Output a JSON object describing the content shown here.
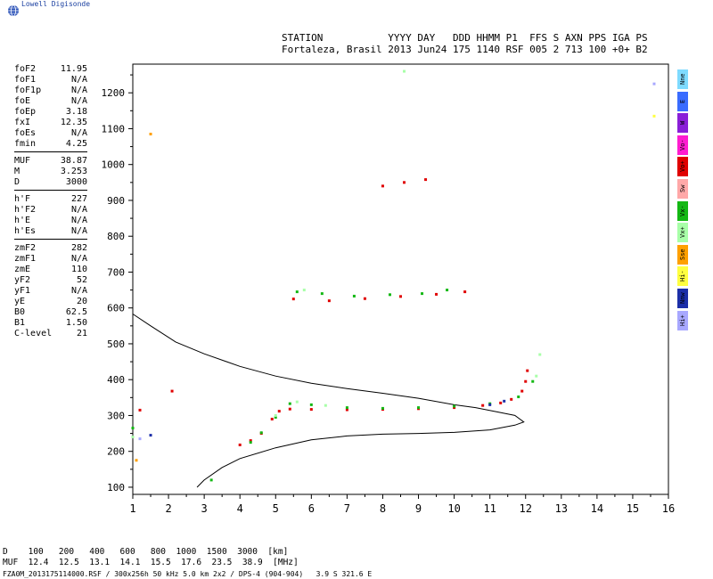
{
  "brand": {
    "logo_icon": "globe-icon",
    "name": "Lowell Digisonde"
  },
  "header": {
    "line1": "STATION           YYYY DAY   DDD HHMM P1  FFS S AXN PPS IGA PS",
    "line2": "Fortaleza, Brasil 2013 Jun24 175 1140 RSF 005 2 713 100 +0+ B2"
  },
  "parameters": [
    [
      [
        "foF2",
        "11.95"
      ],
      [
        "foF1",
        "N/A"
      ],
      [
        "foF1p",
        "N/A"
      ],
      [
        "foE",
        "N/A"
      ],
      [
        "foEp",
        "3.18"
      ],
      [
        "fxI",
        "12.35"
      ],
      [
        "foEs",
        "N/A"
      ],
      [
        "fmin",
        "4.25"
      ]
    ],
    [
      [
        "MUF",
        "38.87"
      ],
      [
        "M",
        "3.253"
      ],
      [
        "D",
        "3000"
      ]
    ],
    [
      [
        "h'F",
        "227"
      ],
      [
        "h'F2",
        "N/A"
      ],
      [
        "h'E",
        "N/A"
      ],
      [
        "h'Es",
        "N/A"
      ]
    ],
    [
      [
        "zmF2",
        "282"
      ],
      [
        "zmF1",
        "N/A"
      ],
      [
        "zmE",
        "110"
      ],
      [
        "yF2",
        "52"
      ],
      [
        "yF1",
        "N/A"
      ],
      [
        "yE",
        "20"
      ],
      [
        "B0",
        "62.5"
      ],
      [
        "B1",
        "1.50"
      ],
      [
        "C-level",
        "21"
      ]
    ]
  ],
  "legend": [
    {
      "label": "Nne",
      "color": "#7fdbff"
    },
    {
      "label": "E",
      "color": "#3a6cff"
    },
    {
      "label": "W",
      "color": "#8a1fd8"
    },
    {
      "label": "Vo-",
      "color": "#ff1cd0"
    },
    {
      "label": "Vo+",
      "color": "#e00000"
    },
    {
      "label": "Sw",
      "color": "#ffa8a8"
    },
    {
      "label": "Vx-",
      "color": "#14b814"
    },
    {
      "label": "Vx+",
      "color": "#a8ffa8"
    },
    {
      "label": "Sse",
      "color": "#ffa000"
    },
    {
      "label": "Hi-",
      "color": "#ffff40"
    },
    {
      "label": "Nnw",
      "color": "#1c2fa8"
    },
    {
      "label": "Hi+",
      "color": "#a8a8ff"
    }
  ],
  "bottom": {
    "row1": "D    100   200   400   600   800  1000  1500  3000  [km]",
    "row2": "MUF  12.4  12.5  13.1  14.1  15.5  17.6  23.5  38.9  [MHz]"
  },
  "footer": "FZA0M_2013175114000.RSF / 300x256h 50 kHz 5.0 km 2x2 / DPS-4 (904-904)   3.9 S 321.6 E",
  "chart_data": {
    "type": "scatter",
    "title": "",
    "xlabel": "",
    "ylabel": "",
    "xlim": [
      1,
      16
    ],
    "ylim": [
      80,
      1280
    ],
    "xticks": [
      1,
      2,
      3,
      4,
      5,
      6,
      7,
      8,
      9,
      10,
      11,
      12,
      13,
      14,
      15,
      16
    ],
    "yticks": [
      100,
      200,
      300,
      400,
      500,
      600,
      700,
      800,
      900,
      1000,
      1100,
      1200
    ],
    "grid": false,
    "legend_position": "right",
    "series": [
      {
        "name": "Vo+",
        "color": "#e00000",
        "points": [
          [
            4.0,
            218
          ],
          [
            4.3,
            230
          ],
          [
            4.6,
            250
          ],
          [
            4.9,
            290
          ],
          [
            5.1,
            312
          ],
          [
            5.4,
            318
          ],
          [
            6.0,
            317
          ],
          [
            7.0,
            316
          ],
          [
            8.0,
            317
          ],
          [
            9.0,
            319
          ],
          [
            10.0,
            322
          ],
          [
            10.8,
            328
          ],
          [
            11.3,
            335
          ],
          [
            11.6,
            345
          ],
          [
            11.9,
            368
          ],
          [
            12.0,
            395
          ],
          [
            12.05,
            425
          ],
          [
            5.5,
            625
          ],
          [
            6.5,
            620
          ],
          [
            7.5,
            626
          ],
          [
            8.5,
            632
          ],
          [
            9.5,
            638
          ],
          [
            10.3,
            645
          ],
          [
            8.0,
            940
          ],
          [
            8.6,
            950
          ],
          [
            9.2,
            958
          ],
          [
            2.1,
            368
          ],
          [
            1.2,
            315
          ]
        ]
      },
      {
        "name": "Vx-",
        "color": "#14b814",
        "points": [
          [
            4.3,
            225
          ],
          [
            4.6,
            252
          ],
          [
            5.0,
            295
          ],
          [
            5.4,
            333
          ],
          [
            6.0,
            330
          ],
          [
            7.0,
            322
          ],
          [
            8.0,
            320
          ],
          [
            9.0,
            322
          ],
          [
            10.0,
            326
          ],
          [
            11.0,
            333
          ],
          [
            11.8,
            352
          ],
          [
            12.2,
            395
          ],
          [
            5.6,
            645
          ],
          [
            6.3,
            640
          ],
          [
            7.2,
            633
          ],
          [
            8.2,
            637
          ],
          [
            9.1,
            640
          ],
          [
            9.8,
            650
          ],
          [
            1.0,
            265
          ],
          [
            3.2,
            120
          ]
        ]
      },
      {
        "name": "Vx+",
        "color": "#a8ffa8",
        "points": [
          [
            5.0,
            300
          ],
          [
            5.6,
            338
          ],
          [
            6.4,
            328
          ],
          [
            12.3,
            410
          ],
          [
            12.4,
            470
          ],
          [
            5.8,
            650
          ],
          [
            8.6,
            1260
          ],
          [
            1.0,
            240
          ]
        ]
      },
      {
        "name": "Nnw",
        "color": "#1c2fa8",
        "points": [
          [
            11.0,
            330
          ],
          [
            11.4,
            340
          ],
          [
            1.5,
            245
          ]
        ]
      },
      {
        "name": "Sse",
        "color": "#ffa000",
        "points": [
          [
            1.5,
            1085
          ],
          [
            1.1,
            175
          ]
        ]
      },
      {
        "name": "Hi+",
        "color": "#a8a8ff",
        "points": [
          [
            15.6,
            1225
          ],
          [
            1.2,
            235
          ]
        ]
      },
      {
        "name": "Hi-",
        "color": "#ffff40",
        "points": [
          [
            15.6,
            1135
          ]
        ]
      }
    ],
    "profile": [
      [
        1.0,
        583
      ],
      [
        1.5,
        550
      ],
      [
        2.2,
        505
      ],
      [
        3.0,
        472
      ],
      [
        4.0,
        437
      ],
      [
        5.0,
        410
      ],
      [
        6.0,
        390
      ],
      [
        7.0,
        375
      ],
      [
        8.0,
        362
      ],
      [
        9.0,
        348
      ],
      [
        10.0,
        330
      ],
      [
        10.6,
        322
      ],
      [
        11.2,
        310
      ],
      [
        11.7,
        300
      ],
      [
        11.95,
        282
      ],
      [
        11.7,
        273
      ],
      [
        11.0,
        260
      ],
      [
        10.0,
        253
      ],
      [
        9.0,
        250
      ],
      [
        8.0,
        248
      ],
      [
        7.0,
        243
      ],
      [
        6.0,
        232
      ],
      [
        5.0,
        210
      ],
      [
        4.0,
        180
      ],
      [
        3.5,
        155
      ],
      [
        3.0,
        120
      ],
      [
        2.8,
        100
      ]
    ]
  }
}
